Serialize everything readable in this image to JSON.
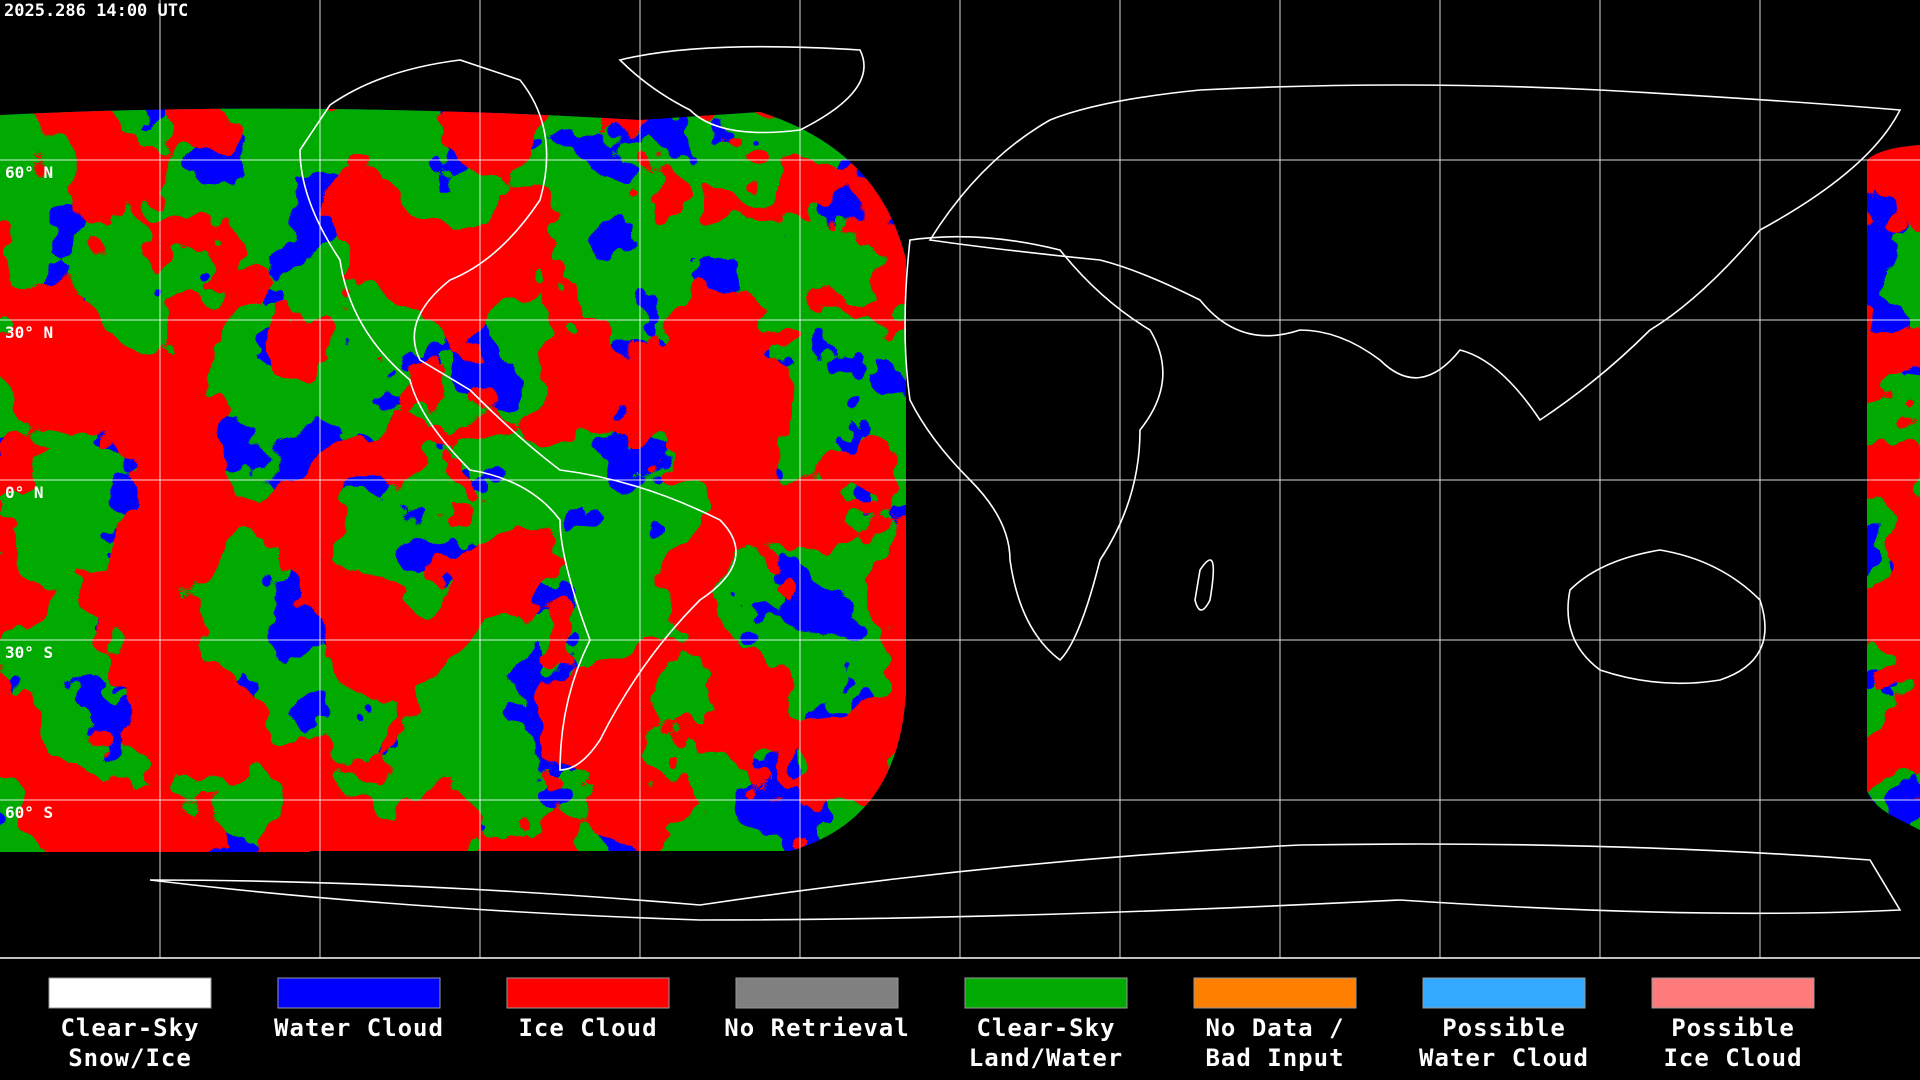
{
  "map": {
    "timestamp": "2025.286 14:00 UTC",
    "latitude_labels": [
      "60° N",
      "30° N",
      "0° N",
      "30° S",
      "60° S"
    ]
  },
  "legend": {
    "items": [
      {
        "label": [
          "Clear-Sky",
          "Snow/Ice"
        ],
        "color": "#ffffff"
      },
      {
        "label": [
          "Water Cloud"
        ],
        "color": "#0000ff"
      },
      {
        "label": [
          "Ice Cloud"
        ],
        "color": "#ff0000"
      },
      {
        "label": [
          "No Retrieval"
        ],
        "color": "#808080"
      },
      {
        "label": [
          "Clear-Sky",
          "Land/Water"
        ],
        "color": "#00aa00"
      },
      {
        "label": [
          "No Data /",
          "Bad Input"
        ],
        "color": "#ff8000"
      },
      {
        "label": [
          "Possible",
          "Water Cloud"
        ],
        "color": "#33aaff"
      },
      {
        "label": [
          "Possible",
          "Ice Cloud"
        ],
        "color": "#ff7a7a"
      }
    ]
  }
}
